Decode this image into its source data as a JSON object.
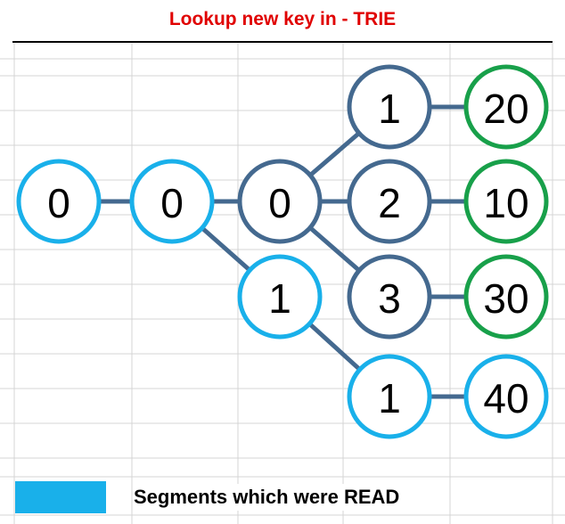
{
  "title": "Lookup new key in - TRIE",
  "colors": {
    "title": "#e00000",
    "read": "#19b0ea",
    "internal": "#44698f",
    "leaf": "#18a04a",
    "grid": "#d4d4d4",
    "node_fill": "#ffffff"
  },
  "nodes": [
    {
      "id": "root",
      "label": "0",
      "kind": "read"
    },
    {
      "id": "n0",
      "label": "0",
      "kind": "read"
    },
    {
      "id": "n00",
      "label": "0",
      "kind": "internal"
    },
    {
      "id": "n01",
      "label": "1",
      "kind": "read"
    },
    {
      "id": "n001",
      "label": "1",
      "kind": "internal"
    },
    {
      "id": "n002",
      "label": "2",
      "kind": "internal"
    },
    {
      "id": "n003",
      "label": "3",
      "kind": "internal"
    },
    {
      "id": "n011",
      "label": "1",
      "kind": "read"
    },
    {
      "id": "v20",
      "label": "20",
      "kind": "leaf"
    },
    {
      "id": "v10",
      "label": "10",
      "kind": "leaf"
    },
    {
      "id": "v30",
      "label": "30",
      "kind": "leaf"
    },
    {
      "id": "v40",
      "label": "40",
      "kind": "read"
    }
  ],
  "edges": [
    {
      "from": "root",
      "to": "n0",
      "kind": "internal"
    },
    {
      "from": "n0",
      "to": "n00",
      "kind": "internal"
    },
    {
      "from": "n0",
      "to": "n01",
      "kind": "internal"
    },
    {
      "from": "n00",
      "to": "n001",
      "kind": "internal"
    },
    {
      "from": "n00",
      "to": "n002",
      "kind": "internal"
    },
    {
      "from": "n00",
      "to": "n003",
      "kind": "internal"
    },
    {
      "from": "n01",
      "to": "n011",
      "kind": "internal"
    },
    {
      "from": "n001",
      "to": "v20",
      "kind": "internal"
    },
    {
      "from": "n002",
      "to": "v10",
      "kind": "internal"
    },
    {
      "from": "n003",
      "to": "v30",
      "kind": "internal"
    },
    {
      "from": "n011",
      "to": "v40",
      "kind": "internal"
    }
  ],
  "legend": {
    "label": "Segments which were READ",
    "color_key": "read"
  }
}
